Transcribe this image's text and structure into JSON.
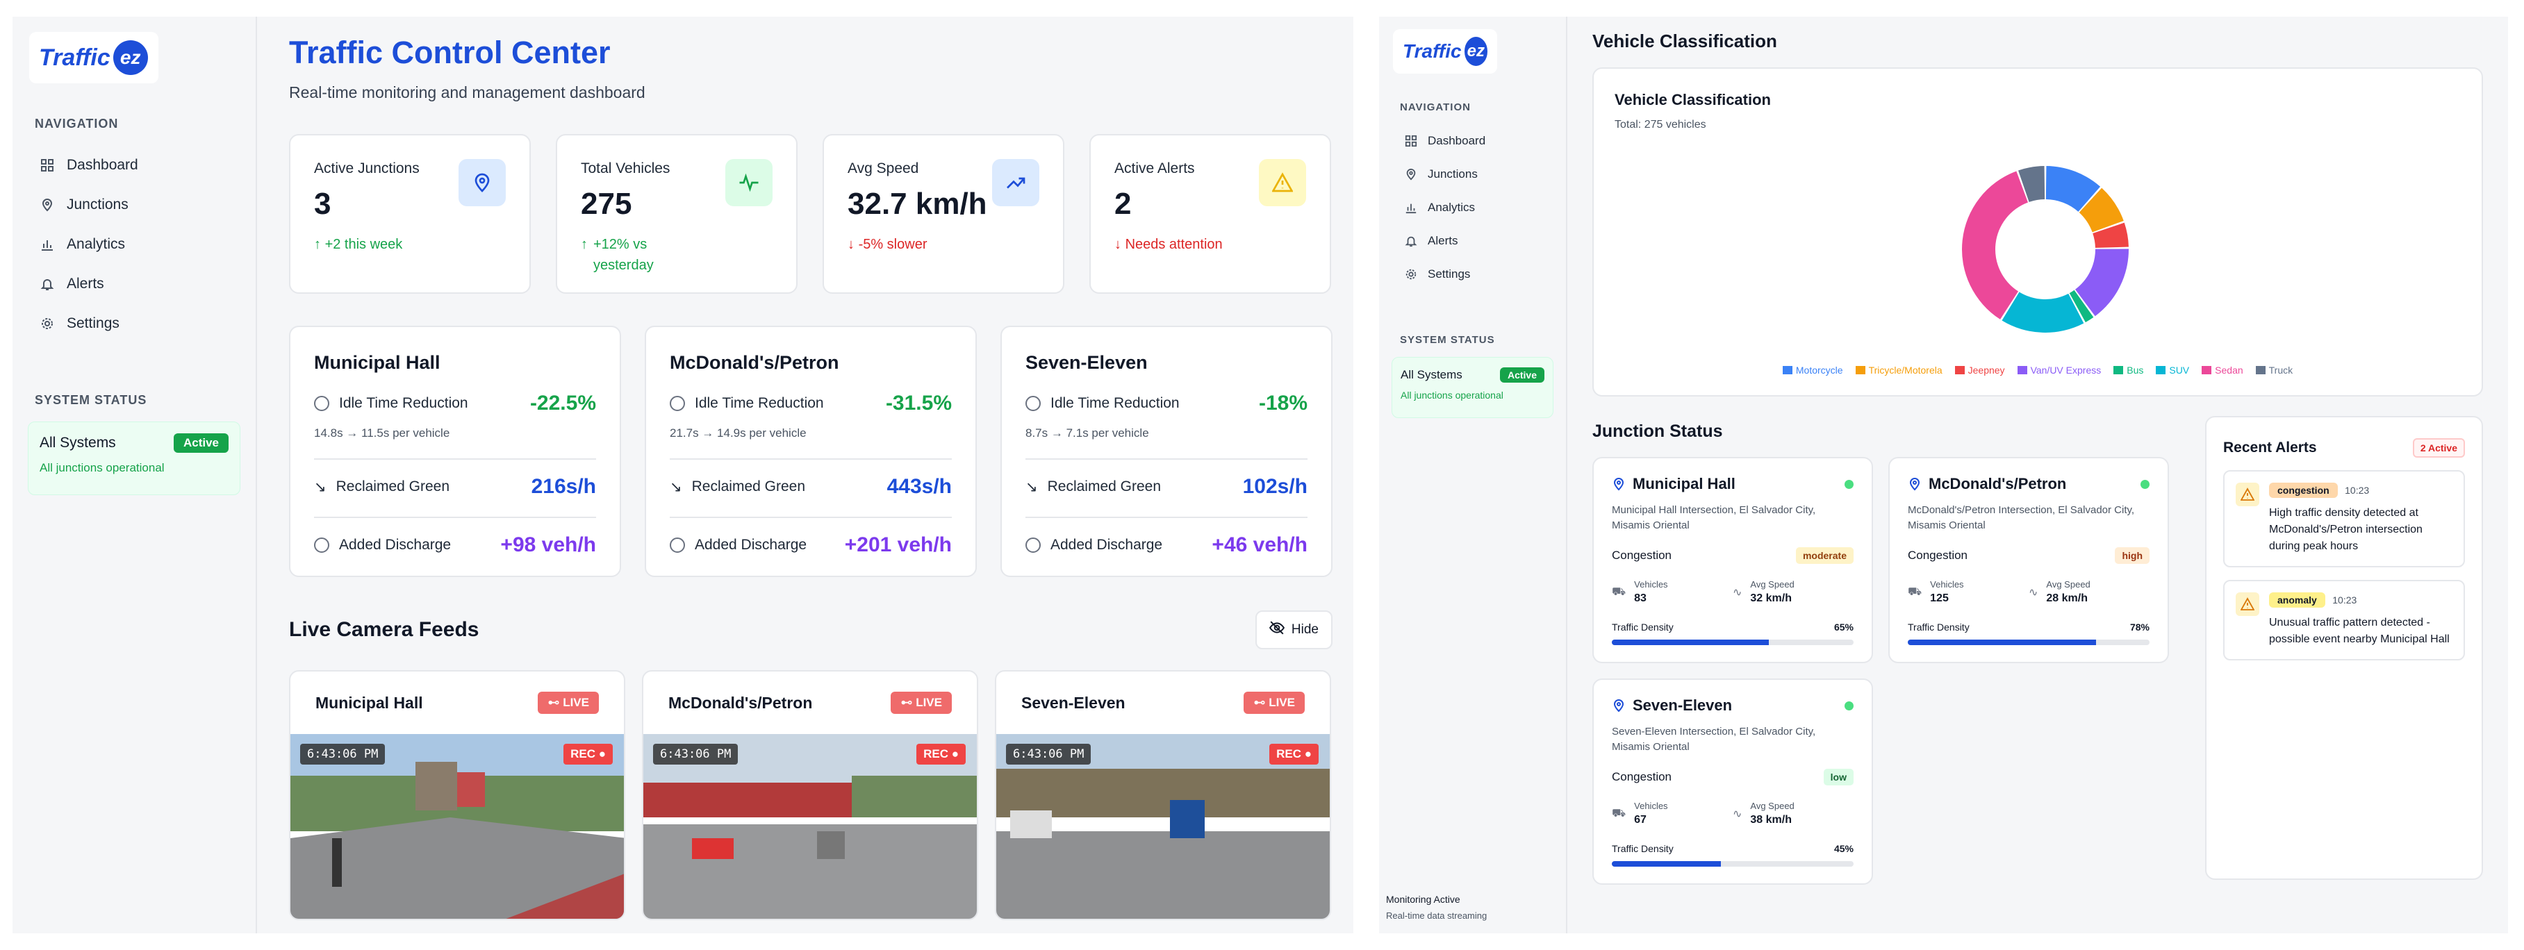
{
  "brand": {
    "logo_text": "Traffic",
    "logo_badge": "ez"
  },
  "sidebar": {
    "nav_label": "NAVIGATION",
    "items": [
      {
        "label": "Dashboard",
        "icon": "grid-icon"
      },
      {
        "label": "Junctions",
        "icon": "map-pin-icon"
      },
      {
        "label": "Analytics",
        "icon": "bar-chart-icon"
      },
      {
        "label": "Alerts",
        "icon": "bell-icon"
      },
      {
        "label": "Settings",
        "icon": "gear-icon"
      }
    ],
    "system_label": "SYSTEM STATUS",
    "system_title": "All Systems",
    "system_badge": "Active",
    "system_sub": "All junctions operational"
  },
  "header": {
    "title": "Traffic Control Center",
    "subtitle": "Real-time monitoring and management dashboard"
  },
  "kpis": [
    {
      "label": "Active Junctions",
      "value": "3",
      "delta": "+2 this week",
      "trend": "up",
      "icon": "map-pin-icon",
      "icon_bg": "#dbeafe",
      "icon_color": "#1d4ed8"
    },
    {
      "label": "Total Vehicles",
      "value": "275",
      "delta": "+12% vs yesterday",
      "trend": "up",
      "icon": "activity-icon",
      "icon_bg": "#dcfce7",
      "icon_color": "#16a34a"
    },
    {
      "label": "Avg Speed",
      "value": "32.7 km/h",
      "delta": "-5% slower",
      "trend": "down",
      "icon": "trending-up-icon",
      "icon_bg": "#dbeafe",
      "icon_color": "#1d4ed8"
    },
    {
      "label": "Active Alerts",
      "value": "2",
      "delta": "Needs attention",
      "trend": "down",
      "icon": "warning-icon",
      "icon_bg": "#fef9c3",
      "icon_color": "#eab308"
    }
  ],
  "junction_cards": [
    {
      "name": "Municipal Hall",
      "idle_label": "Idle Time Reduction",
      "idle_value": "-22.5%",
      "idle_detail": "14.8s → 11.5s per vehicle",
      "green_label": "Reclaimed Green",
      "green_value": "216s/h",
      "discharge_label": "Added Discharge",
      "discharge_value": "+98 veh/h"
    },
    {
      "name": "McDonald's/Petron",
      "idle_label": "Idle Time Reduction",
      "idle_value": "-31.5%",
      "idle_detail": "21.7s → 14.9s per vehicle",
      "green_label": "Reclaimed Green",
      "green_value": "443s/h",
      "discharge_label": "Added Discharge",
      "discharge_value": "+201 veh/h"
    },
    {
      "name": "Seven-Eleven",
      "idle_label": "Idle Time Reduction",
      "idle_value": "-18%",
      "idle_detail": "8.7s → 7.1s per vehicle",
      "green_label": "Reclaimed Green",
      "green_value": "102s/h",
      "discharge_label": "Added Discharge",
      "discharge_value": "+46 veh/h"
    }
  ],
  "feeds": {
    "title": "Live Camera Feeds",
    "hide_label": "Hide",
    "items": [
      {
        "name": "Municipal Hall",
        "live": "LIVE",
        "time": "6:43:06 PM",
        "rec": "REC"
      },
      {
        "name": "McDonald's/Petron",
        "live": "LIVE",
        "time": "6:43:06 PM",
        "rec": "REC"
      },
      {
        "name": "Seven-Eleven",
        "live": "LIVE",
        "time": "6:43:06 PM",
        "rec": "REC"
      }
    ]
  },
  "right": {
    "section_title": "Vehicle Classification",
    "chart_title": "Vehicle Classification",
    "chart_sub": "Total: 275 vehicles",
    "junction_status_title": "Junction Status",
    "monitor_title": "Monitoring Active",
    "monitor_sub": "Real-time data streaming"
  },
  "chart_data": {
    "type": "pie",
    "title": "Vehicle Classification",
    "categories": [
      "Motorcycle",
      "Tricycle/Motorela",
      "Jeepney",
      "Van/UV Express",
      "Bus",
      "SUV",
      "Sedan",
      "Truck"
    ],
    "values": [
      32,
      22,
      14,
      42,
      6,
      46,
      98,
      15
    ],
    "colors": [
      "#3b82f6",
      "#f59e0b",
      "#ef4444",
      "#8b5cf6",
      "#10b981",
      "#06b6d4",
      "#ec4899",
      "#64748b"
    ]
  },
  "junction_status": [
    {
      "name": "Municipal Hall",
      "address": "Municipal Hall Intersection, El Salvador City, Misamis Oriental",
      "congestion_label": "Congestion",
      "congestion": "moderate",
      "cong_bg": "#fef3c7",
      "cong_color": "#92400e",
      "vehicles_label": "Vehicles",
      "vehicles": "83",
      "speed_label": "Avg Speed",
      "speed": "32 km/h",
      "density_label": "Traffic Density",
      "density": "65%",
      "density_value": 0.65
    },
    {
      "name": "McDonald's/Petron",
      "address": "McDonald's/Petron Intersection, El Salvador City, Misamis Oriental",
      "congestion_label": "Congestion",
      "congestion": "high",
      "cong_bg": "#ffedd5",
      "cong_color": "#9a3412",
      "vehicles_label": "Vehicles",
      "vehicles": "125",
      "speed_label": "Avg Speed",
      "speed": "28 km/h",
      "density_label": "Traffic Density",
      "density": "78%",
      "density_value": 0.78
    },
    {
      "name": "Seven-Eleven",
      "address": "Seven-Eleven Intersection, El Salvador City, Misamis Oriental",
      "congestion_label": "Congestion",
      "congestion": "low",
      "cong_bg": "#dcfce7",
      "cong_color": "#166534",
      "vehicles_label": "Vehicles",
      "vehicles": "67",
      "speed_label": "Avg Speed",
      "speed": "38 km/h",
      "density_label": "Traffic Density",
      "density": "45%",
      "density_value": 0.45
    }
  ],
  "alerts": {
    "title": "Recent Alerts",
    "badge": "2 Active",
    "items": [
      {
        "type": "congestion",
        "time": "10:23",
        "message": "High traffic density detected at McDonald's/Petron intersection during peak hours"
      },
      {
        "type": "anomaly",
        "time": "10:23",
        "message": "Unusual traffic pattern detected - possible event nearby Municipal Hall"
      }
    ]
  }
}
